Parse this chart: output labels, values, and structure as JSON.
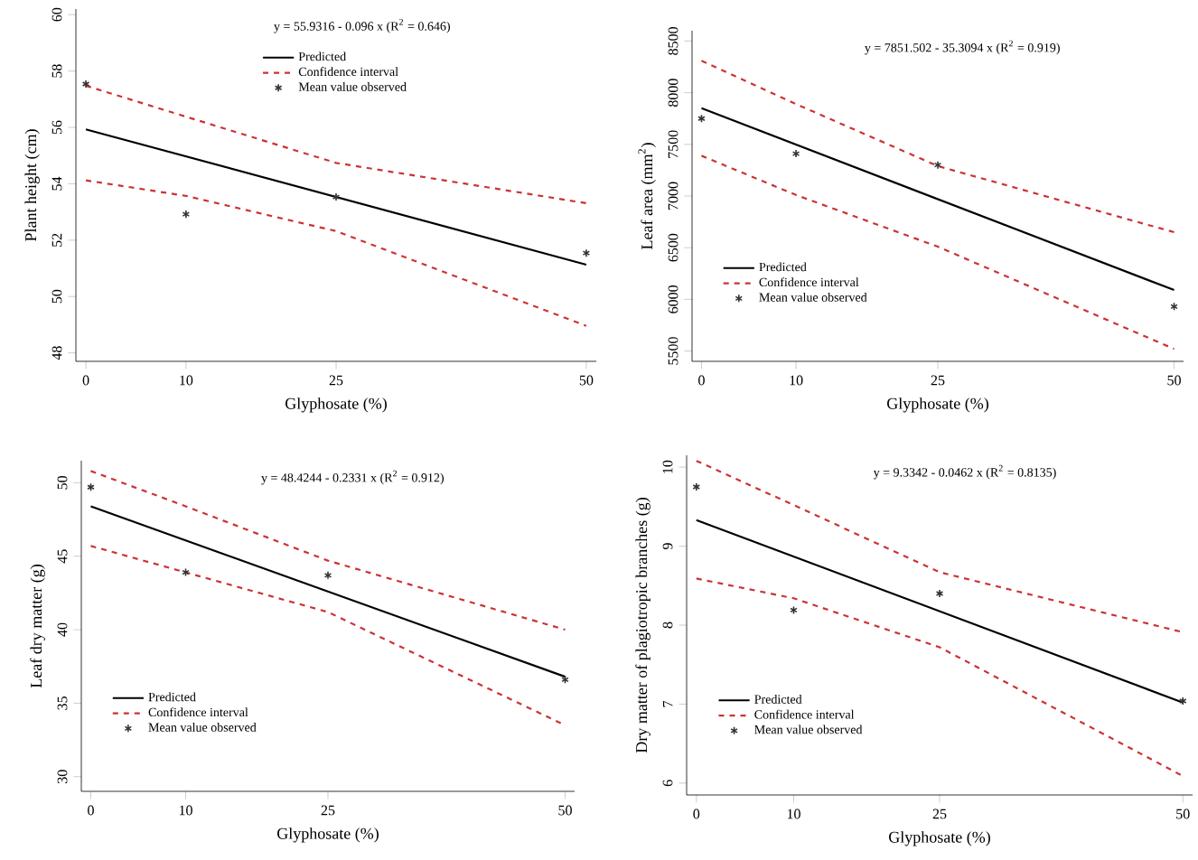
{
  "chart_data": [
    {
      "type": "line",
      "xlabel": "Glyphosate (%)",
      "ylabel": "Plant height (cm)",
      "annotations": [
        "y = 55.9316 - 0.096 x  (R$^{2}$ = 0.646)"
      ],
      "xlim": [
        -1,
        51
      ],
      "ylim": [
        47.7,
        60.2
      ],
      "xticks": [
        0,
        10,
        25,
        50
      ],
      "yticks": [
        48,
        50,
        52,
        54,
        56,
        58,
        60
      ],
      "legend": "top",
      "series": [
        {
          "name": "Predicted",
          "type": "line",
          "color": "#000000",
          "line_style": "solid",
          "x": [
            0,
            50
          ],
          "values": [
            55.93,
            51.13
          ]
        },
        {
          "name": "Confidence interval",
          "type": "line",
          "color": "#cc3333",
          "line_style": "dashed",
          "x": [
            0,
            10,
            25,
            50
          ],
          "values": [
            57.48,
            56.38,
            54.74,
            53.31
          ]
        },
        {
          "type": "line",
          "color": "#cc3333",
          "line_style": "dashed",
          "x": [
            0,
            10,
            25,
            50
          ],
          "values": [
            54.12,
            53.57,
            52.32,
            48.96
          ]
        },
        {
          "name": "Mean value observed",
          "type": "scatter",
          "color": "#333333",
          "marker": "cross",
          "x": [
            0,
            10,
            25,
            50
          ],
          "values": [
            57.54,
            52.92,
            53.53,
            51.54
          ]
        }
      ]
    },
    {
      "type": "line",
      "xlabel": "Glyphosate (%)",
      "ylabel": "Leaf area (mm$^{2}$)",
      "annotations": [
        "y = 7851.502 - 35.3094 x  (R$^{2}$ = 0.919)"
      ],
      "xlim": [
        -1,
        51
      ],
      "ylim": [
        5400,
        8600
      ],
      "xticks": [
        0,
        10,
        25,
        50
      ],
      "yticks": [
        5500,
        6000,
        6500,
        7000,
        7500,
        8000,
        8500
      ],
      "legend": "bottom left",
      "series": [
        {
          "name": "Predicted",
          "type": "line",
          "color": "#000000",
          "line_style": "solid",
          "x": [
            0,
            50
          ],
          "values": [
            7850,
            6090
          ]
        },
        {
          "name": "Confidence interval",
          "type": "line",
          "color": "#cc3333",
          "line_style": "dashed",
          "x": [
            0,
            10,
            25,
            50
          ],
          "values": [
            8310,
            7890,
            7290,
            6650
          ]
        },
        {
          "type": "line",
          "color": "#cc3333",
          "line_style": "dashed",
          "x": [
            0,
            10,
            25,
            50
          ],
          "values": [
            7390,
            7010,
            6510,
            5520
          ]
        },
        {
          "name": "Mean value observed",
          "type": "scatter",
          "color": "#333333",
          "marker": "cross",
          "x": [
            0,
            10,
            25,
            50
          ],
          "values": [
            7750,
            7410,
            7300,
            5930
          ]
        }
      ]
    },
    {
      "type": "line",
      "xlabel": "Glyphosate (%)",
      "ylabel": "Leaf dry matter (g)",
      "annotations": [
        "y = 48.4244 - 0.2331 x  (R$^{2}$ = 0.912)"
      ],
      "xlim": [
        -1,
        51
      ],
      "ylim": [
        29,
        51.5
      ],
      "xticks": [
        0,
        10,
        25,
        50
      ],
      "yticks": [
        30,
        35,
        40,
        45,
        50
      ],
      "legend": "bottom left",
      "series": [
        {
          "name": "Predicted",
          "type": "line",
          "color": "#000000",
          "line_style": "solid",
          "x": [
            0,
            50
          ],
          "values": [
            48.4,
            36.8
          ]
        },
        {
          "name": "Confidence interval",
          "type": "line",
          "color": "#cc3333",
          "line_style": "dashed",
          "x": [
            0,
            10,
            25,
            50
          ],
          "values": [
            50.8,
            48.4,
            44.7,
            40.0
          ]
        },
        {
          "type": "line",
          "color": "#cc3333",
          "line_style": "dashed",
          "x": [
            0,
            10,
            25,
            50
          ],
          "values": [
            45.7,
            43.9,
            41.2,
            33.5
          ]
        },
        {
          "name": "Mean value observed",
          "type": "scatter",
          "color": "#333333",
          "marker": "cross",
          "x": [
            0,
            10,
            25,
            50
          ],
          "values": [
            49.7,
            43.9,
            43.7,
            36.6
          ]
        }
      ]
    },
    {
      "type": "line",
      "xlabel": "Glyphosate (%)",
      "ylabel": "Dry matter of plagiotropic branches (g)",
      "annotations": [
        "y = 9.3342 - 0.0462 x  (R$^{2}$ = 0.8135)"
      ],
      "xlim": [
        -1,
        51
      ],
      "ylim": [
        5.85,
        10.15
      ],
      "xticks": [
        0,
        10,
        25,
        50
      ],
      "yticks": [
        6,
        7,
        8,
        9,
        10
      ],
      "legend": "bottom left",
      "series": [
        {
          "name": "Predicted",
          "type": "line",
          "color": "#000000",
          "line_style": "solid",
          "x": [
            0,
            50
          ],
          "values": [
            9.33,
            7.02
          ]
        },
        {
          "name": "Confidence interval",
          "type": "line",
          "color": "#cc3333",
          "line_style": "dashed",
          "x": [
            0,
            10,
            25,
            50
          ],
          "values": [
            10.08,
            9.52,
            8.67,
            7.91
          ]
        },
        {
          "type": "line",
          "color": "#cc3333",
          "line_style": "dashed",
          "x": [
            0,
            10,
            25,
            50
          ],
          "values": [
            8.59,
            8.34,
            7.72,
            6.09
          ]
        },
        {
          "name": "Mean value observed",
          "type": "scatter",
          "color": "#333333",
          "marker": "cross",
          "x": [
            0,
            10,
            25,
            50
          ],
          "values": [
            9.75,
            8.19,
            8.4,
            7.04
          ]
        }
      ]
    }
  ]
}
